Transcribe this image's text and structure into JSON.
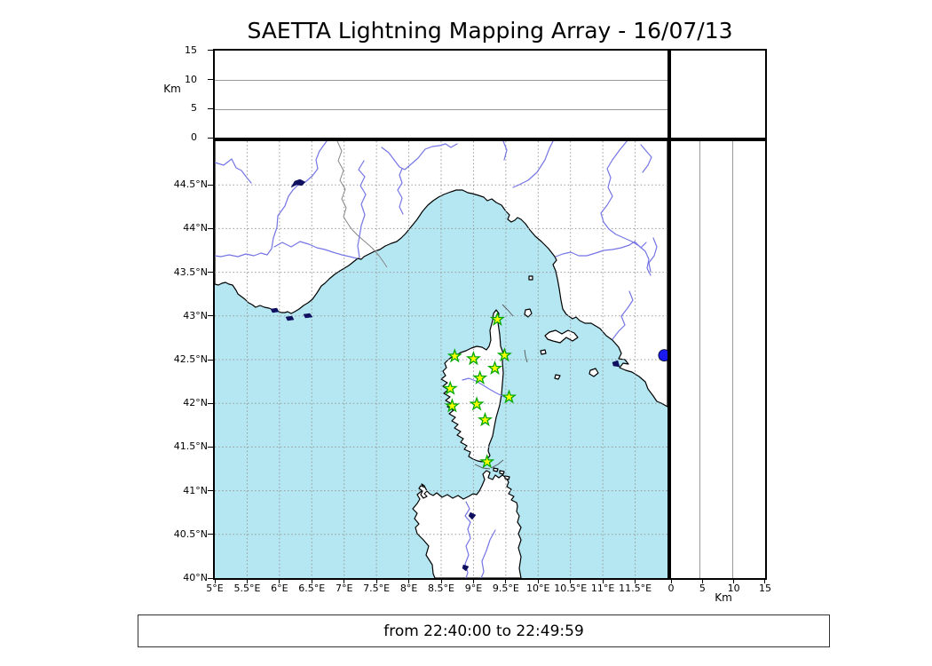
{
  "title": "SAETTA Lightning Mapping Array - 16/07/13",
  "footer": {
    "time_range": "from 22:40:00 to 22:49:59"
  },
  "altitude_axis_left": {
    "unit_label": "Km",
    "tick_labels": [
      "0",
      "5",
      "10",
      "15"
    ]
  },
  "altitude_axis_bottom_right": {
    "unit_label": "Km",
    "tick_labels": [
      "0",
      "5",
      "10",
      "15"
    ]
  },
  "map": {
    "lon_tick_labels": [
      "5°E",
      "5.5°E",
      "6°E",
      "6.5°E",
      "7°E",
      "7.5°E",
      "8°E",
      "8.5°E",
      "9°E",
      "9.5°E",
      "10°E",
      "10.5°E",
      "11°E",
      "11.5°E"
    ],
    "lat_tick_labels": [
      "44.5°N",
      "44°N",
      "43.5°N",
      "43°N",
      "42.5°N",
      "42°N",
      "41.5°N",
      "41°N",
      "40.5°N",
      "40°N"
    ],
    "lon_range": [
      5,
      12
    ],
    "lat_range": [
      40,
      45
    ],
    "stations": [
      {
        "lon": 9.37,
        "lat": 42.96
      },
      {
        "lon": 8.71,
        "lat": 42.54
      },
      {
        "lon": 9.0,
        "lat": 42.51
      },
      {
        "lon": 9.48,
        "lat": 42.55
      },
      {
        "lon": 9.33,
        "lat": 42.4
      },
      {
        "lon": 9.1,
        "lat": 42.29
      },
      {
        "lon": 8.64,
        "lat": 42.17
      },
      {
        "lon": 9.55,
        "lat": 42.07
      },
      {
        "lon": 9.05,
        "lat": 41.99
      },
      {
        "lon": 8.67,
        "lat": 41.97
      },
      {
        "lon": 9.18,
        "lat": 41.81
      },
      {
        "lon": 9.21,
        "lat": 41.33
      }
    ],
    "water_dot": {
      "lon": 11.95,
      "lat": 42.55
    },
    "colors": {
      "sea": "#b4e7f2",
      "land": "#ffffff",
      "river": "#7575e6",
      "grid": "#999999",
      "border_line": "#858585",
      "lake": "#101060",
      "station_fill": "#ffff00",
      "station_stroke": "#00a800",
      "water_dot": "#1a1aee"
    }
  }
}
